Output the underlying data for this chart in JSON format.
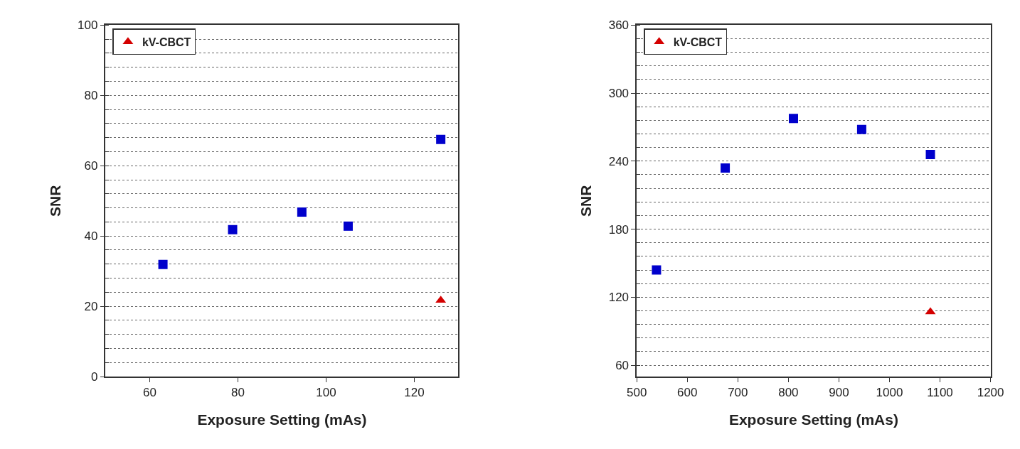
{
  "chart_data": [
    {
      "type": "scatter",
      "xlabel": "Exposure Setting (mAs)",
      "ylabel": "SNR",
      "xlim": [
        50,
        130
      ],
      "xticks": [
        60,
        80,
        100,
        120
      ],
      "ylim": [
        0,
        100
      ],
      "yticks": [
        0,
        20,
        40,
        60,
        80,
        100
      ],
      "grid": "y",
      "legend": "top left",
      "series": [
        {
          "color": "#0000cc",
          "marker": "square",
          "x": [
            63,
            78.8,
            94.5,
            105,
            126
          ],
          "values": [
            31.9,
            41.8,
            46.8,
            42.8,
            67.5
          ]
        },
        {
          "name": "kV-CBCT",
          "color": "#d40000",
          "marker": "triangle",
          "x": [
            126
          ],
          "values": [
            21.7
          ]
        }
      ]
    },
    {
      "type": "scatter",
      "xlabel": "Exposure Setting (mAs)",
      "ylabel": "SNR",
      "xlim": [
        500,
        1200
      ],
      "xticks": [
        500,
        600,
        700,
        800,
        900,
        1000,
        1100,
        1200
      ],
      "ylim": [
        50,
        360
      ],
      "yticks": [
        60,
        120,
        180,
        240,
        300,
        360
      ],
      "grid": "y",
      "legend": "top left",
      "series": [
        {
          "color": "#0000cc",
          "marker": "square",
          "x": [
            539,
            675,
            810,
            945,
            1081
          ],
          "values": [
            144,
            234,
            277.7,
            268,
            245.8
          ]
        },
        {
          "name": "kV-CBCT",
          "color": "#d40000",
          "marker": "triangle",
          "x": [
            1081
          ],
          "values": [
            107
          ]
        }
      ]
    }
  ]
}
